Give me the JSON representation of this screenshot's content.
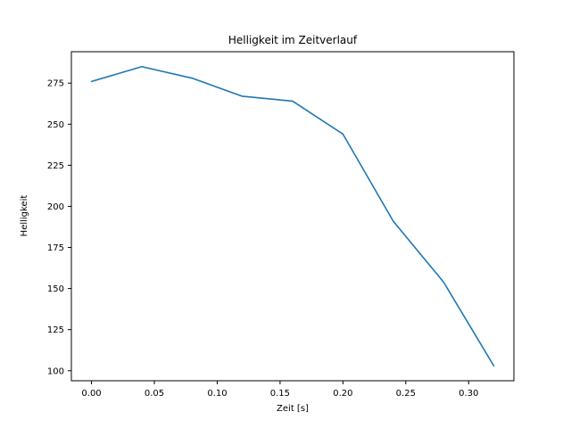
{
  "figure": {
    "background": "#ffffff"
  },
  "chart_data": {
    "type": "line",
    "title": "Helligkeit im Zeitverlauf",
    "xlabel": "Zeit [s]",
    "ylabel": "Helligkeit",
    "x": [
      0.0,
      0.04,
      0.08,
      0.12,
      0.16,
      0.2,
      0.24,
      0.28,
      0.32
    ],
    "y": [
      276,
      285,
      278,
      267,
      264,
      244,
      191,
      154,
      103
    ],
    "xlim": [
      -0.016,
      0.336
    ],
    "ylim": [
      93.9,
      294.1
    ],
    "xticks": [
      0.0,
      0.05,
      0.1,
      0.15,
      0.2,
      0.25,
      0.3
    ],
    "xtick_labels": [
      "0.00",
      "0.05",
      "0.10",
      "0.15",
      "0.20",
      "0.25",
      "0.30"
    ],
    "yticks": [
      100,
      125,
      150,
      175,
      200,
      225,
      250,
      275
    ],
    "ytick_labels": [
      "100",
      "125",
      "150",
      "175",
      "200",
      "225",
      "250",
      "275"
    ],
    "grid": false,
    "legend": null,
    "line_color": "#1f77b4",
    "spine_color": "#000000"
  }
}
